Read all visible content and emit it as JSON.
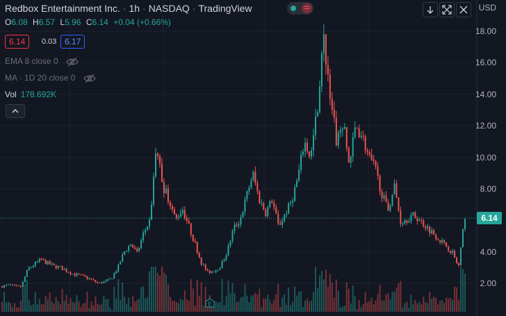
{
  "header": {
    "symbol_name": "Redbox Entertainment Inc.",
    "interval": "1h",
    "exchange": "NASDAQ",
    "source": "TradingView"
  },
  "ohlc": {
    "o_label": "O",
    "o": "6.08",
    "h_label": "H",
    "h": "6.57",
    "l_label": "L",
    "l": "5.96",
    "c_label": "C",
    "c": "6.14",
    "change": "+0.04 (+0.66%)"
  },
  "trade": {
    "bid": "6.14",
    "spread": "0.03",
    "ask": "6.17"
  },
  "indicators": [
    {
      "label": "EMA 8 close 0"
    },
    {
      "label": "MA · 1D 20 close 0"
    }
  ],
  "volume": {
    "label": "Vol",
    "value": "178.692K"
  },
  "price_axis": {
    "currency": "USD",
    "ticks": [
      "18.00",
      "16.00",
      "14.00",
      "12.00",
      "10.00",
      "8.00",
      "4.00",
      "2.00"
    ],
    "last_price": "6.14"
  },
  "colors": {
    "up": "#26a69a",
    "down": "#ef5350",
    "background": "#131722"
  },
  "icons": [
    "eye-off-icon",
    "chevron-up-icon",
    "arrow-down-icon",
    "fullscreen-icon",
    "earnings-icon"
  ],
  "chart_data": {
    "type": "candlestick",
    "ylim": [
      1.2,
      18.7
    ],
    "close_series": [
      1.8,
      1.9,
      1.8,
      1.8,
      2.9,
      3.2,
      3.5,
      3.3,
      3.1,
      3.0,
      2.8,
      2.6,
      2.5,
      2.4,
      2.2,
      2.0,
      2.1,
      2.3,
      3.0,
      4.0,
      4.5,
      3.9,
      5.2,
      6.0,
      10.7,
      8.2,
      7.3,
      6.0,
      6.8,
      5.7,
      4.5,
      3.3,
      2.7,
      2.8,
      3.1,
      4.0,
      5.5,
      6.0,
      7.5,
      9.0,
      7.3,
      6.5,
      7.3,
      5.6,
      6.4,
      7.2,
      8.7,
      11.0,
      10.0,
      13.0,
      17.5,
      14.2,
      11.0,
      12.2,
      9.5,
      12.0,
      11.4,
      10.0,
      9.3,
      7.8,
      6.6,
      8.2,
      5.9,
      6.1,
      6.3,
      6.0,
      5.6,
      5.2,
      4.8,
      4.4,
      4.0,
      3.0,
      6.3
    ]
  }
}
